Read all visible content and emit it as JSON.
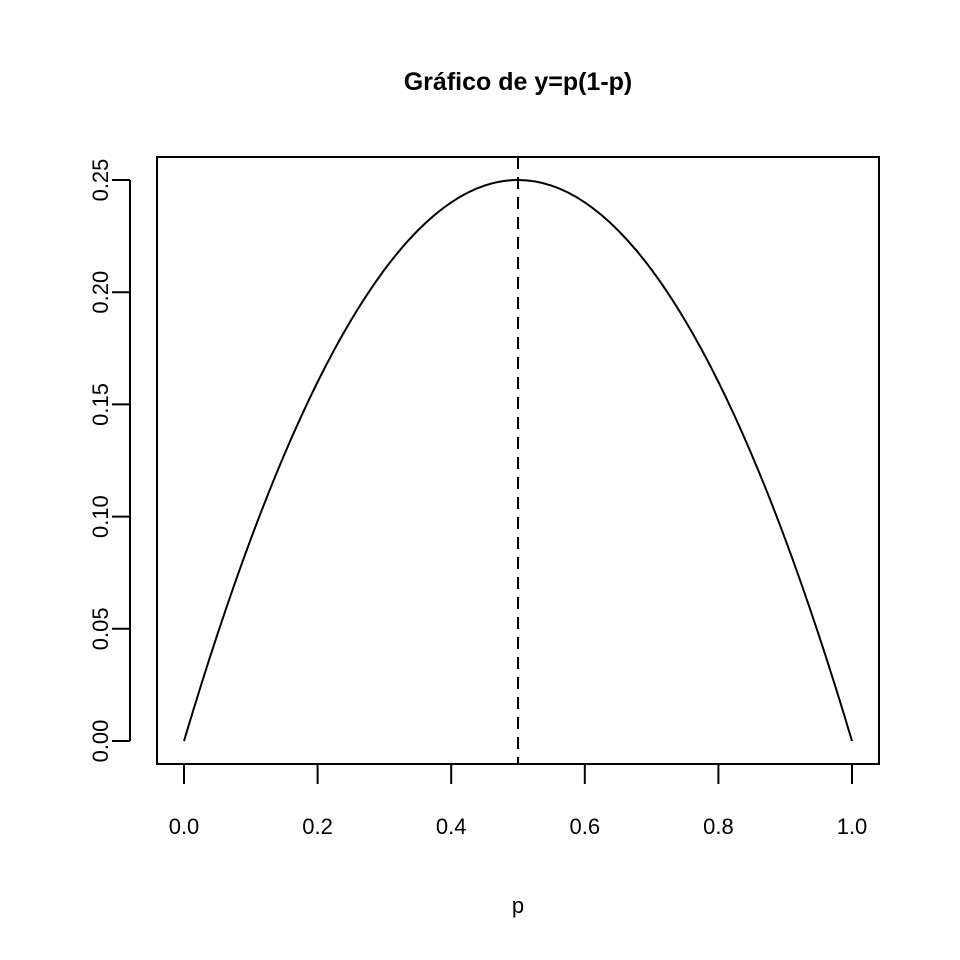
{
  "chart_data": {
    "type": "line",
    "title": "Gráfico de y=p(1-p)",
    "xlabel": "p",
    "ylabel": "",
    "xlim": [
      0,
      1
    ],
    "ylim": [
      0,
      0.25
    ],
    "x_ticks": [
      "0.0",
      "0.2",
      "0.4",
      "0.6",
      "0.8",
      "1.0"
    ],
    "y_ticks": [
      "0.00",
      "0.05",
      "0.10",
      "0.15",
      "0.20",
      "0.25"
    ],
    "series": [
      {
        "x": [
          0,
          0.05,
          0.1,
          0.15,
          0.2,
          0.25,
          0.3,
          0.35,
          0.4,
          0.45,
          0.5,
          0.55,
          0.6,
          0.65,
          0.7,
          0.75,
          0.8,
          0.85,
          0.9,
          0.95,
          1
        ],
        "y": [
          0,
          0.0475,
          0.09,
          0.1275,
          0.16,
          0.1875,
          0.21,
          0.2275,
          0.24,
          0.2475,
          0.25,
          0.2475,
          0.24,
          0.2275,
          0.21,
          0.1875,
          0.16,
          0.1275,
          0.09,
          0.0475,
          0
        ],
        "color": "#000000",
        "style": "solid"
      }
    ],
    "vertical_line": {
      "x": 0.5,
      "style": "dashed",
      "color": "#000000"
    },
    "grid": false,
    "legend": "none"
  }
}
